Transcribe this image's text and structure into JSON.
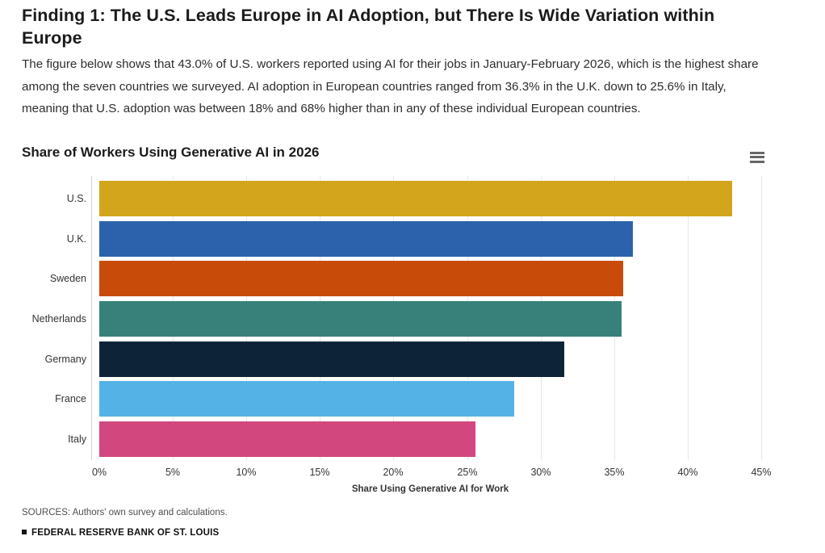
{
  "header": {
    "title": "Finding 1: The U.S. Leads Europe in AI Adoption, but There Is Wide Variation within Europe",
    "paragraph": "The figure below shows that 43.0% of U.S. workers reported using AI for their jobs in January-February 2026, which is the highest share among the seven countries we surveyed. AI adoption in European countries ranged from 36.3% in the U.K. down to 25.6% in Italy, meaning that U.S. adoption was between 18% and 68% higher than in any of these individual European countries."
  },
  "chart_data": {
    "type": "bar",
    "orientation": "horizontal",
    "title": "Share of Workers Using Generative AI in 2026",
    "categories": [
      "U.S.",
      "U.K.",
      "Sweden",
      "Netherlands",
      "Germany",
      "France",
      "Italy"
    ],
    "values": [
      43.0,
      36.3,
      35.6,
      35.5,
      31.6,
      28.2,
      25.6
    ],
    "bar_colors": [
      "#d3a51c",
      "#2b62ab",
      "#c94b0a",
      "#37817a",
      "#0d2337",
      "#55b2e6",
      "#d2477d"
    ],
    "xlabel": "Share Using Generative AI for Work",
    "ylabel": "",
    "xlim": [
      0,
      45
    ],
    "x_tick_step": 5,
    "x_ticks": [
      "0%",
      "5%",
      "10%",
      "15%",
      "20%",
      "25%",
      "30%",
      "35%",
      "40%",
      "45%"
    ],
    "grid": "vertical-only",
    "legend": "none"
  },
  "toolbar": {
    "menu_icon": "hamburger-icon"
  },
  "footer": {
    "sources": "SOURCES: Authors' own survey and calculations.",
    "brand": "FEDERAL RESERVE BANK OF ST. LOUIS"
  },
  "colors": {
    "heading_text": "#1b1b1b",
    "body_text": "#2e2e2e",
    "axis_text": "#333333",
    "gridline": "#e7e7e7",
    "axis_line": "#d4d4d4",
    "menu_icon": "#666666",
    "background": "#ffffff"
  }
}
